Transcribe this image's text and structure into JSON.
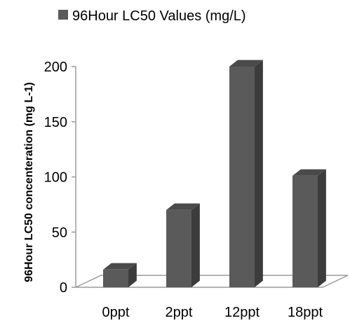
{
  "chart_data": {
    "type": "bar",
    "style": "3d-column",
    "categories": [
      "0ppt",
      "2ppt",
      "12ppt",
      "18ppt"
    ],
    "series": [
      {
        "name": "96Hour LC50 Values (mg/L)",
        "values": [
          16,
          70,
          200,
          101
        ]
      }
    ],
    "ylabel": "96Hour LC50 concenteration (mg L-1)",
    "xlabel": "",
    "ylim": [
      0,
      200
    ],
    "yticks": [
      0,
      50,
      100,
      150,
      200
    ],
    "grid": false,
    "legend": "top",
    "colors": {
      "front": "#5a5a5a",
      "side": "#3c3c3c",
      "top": "#4a4a4a",
      "floor": "#9a9a9a"
    }
  }
}
